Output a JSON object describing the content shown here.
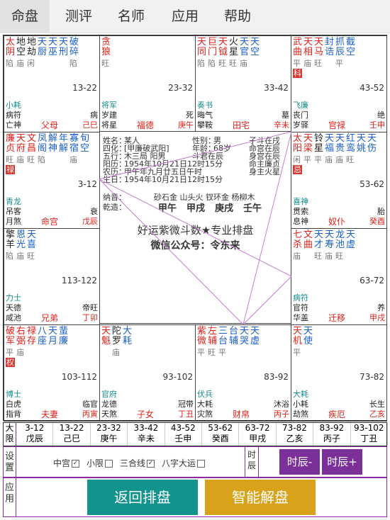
{
  "nav": {
    "tabs": [
      "命盘",
      "测评",
      "名师",
      "应用",
      "帮助"
    ]
  },
  "cells": [
    {
      "id": "si",
      "stars": [
        [
          "太阴",
          "red"
        ],
        [
          "地空",
          "blk"
        ],
        [
          "地劫",
          "blk"
        ],
        [
          "天厨",
          "blue"
        ],
        [
          "天巫",
          "blue"
        ],
        [
          "天刑",
          "blue"
        ],
        [
          "破碎",
          "blue"
        ]
      ],
      "brights": [
        "陷",
        "庙",
        "闲",
        "",
        "",
        "",
        "陷"
      ],
      "hua": "",
      "range": "13-22",
      "bl": [
        "小耗",
        "病符",
        "亡神"
      ],
      "bm": "父母",
      "br": [
        "",
        "病",
        "己巳"
      ]
    },
    {
      "id": "wu",
      "stars": [
        [
          "贪狼",
          "red"
        ]
      ],
      "brights": [
        "旺"
      ],
      "hua": "",
      "range": "23-32",
      "bl": [
        "将军",
        "岁建",
        "将星"
      ],
      "bm": "福德",
      "br": [
        "",
        "死",
        "庚午"
      ]
    },
    {
      "id": "wei",
      "stars": [
        [
          "天同",
          "red"
        ],
        [
          "巨门",
          "red"
        ],
        [
          "天钺",
          "red"
        ],
        [
          "火星",
          "blk"
        ],
        [
          "天官",
          "blue"
        ],
        [
          "天空",
          "blue"
        ]
      ],
      "brights": [
        "陷",
        "陷",
        "旺",
        "旺",
        "庙",
        ""
      ],
      "hua": "",
      "range": "33-42",
      "bl": [
        "奏书",
        "晦气",
        "攀鞍"
      ],
      "bm": "田宅",
      "br": [
        "",
        "墓",
        "辛未"
      ]
    },
    {
      "id": "shen",
      "stars": [
        [
          "武曲",
          "red"
        ],
        [
          "天相",
          "red"
        ],
        [
          "天马",
          "red"
        ],
        [
          "封诰",
          "blue"
        ],
        [
          "抓辰",
          "blue"
        ],
        [
          "截空",
          "blue"
        ]
      ],
      "brights": [
        "平",
        "庙",
        "旺",
        "",
        "平",
        ""
      ],
      "hua": "科",
      "range": "43-52",
      "bl": [
        "飞廉",
        "丧门",
        "岁驿"
      ],
      "bm": "官禄",
      "br": [
        "",
        "绝",
        "壬申"
      ]
    },
    {
      "id": "chen",
      "stars": [
        [
          "廉贞",
          "red"
        ],
        [
          "天府",
          "red"
        ],
        [
          "文昌",
          "red"
        ],
        [
          "凤阁",
          "blue"
        ],
        [
          "解神",
          "blue"
        ],
        [
          "年解",
          "blue"
        ],
        [
          "寡宿",
          "blue"
        ],
        [
          "旬空",
          "blue"
        ]
      ],
      "brights": [
        "旺",
        "庙",
        "旺",
        "陷",
        "",
        "",
        "庙",
        ""
      ],
      "hua": "禄",
      "range": "3-12",
      "bl": [
        "青龙",
        "吊客",
        "月煞"
      ],
      "bm": "命宫",
      "br": [
        "",
        "衰",
        "戊辰"
      ]
    },
    {
      "id": "you",
      "stars": [
        [
          "太阳",
          "red"
        ],
        [
          "天梁",
          "red"
        ],
        [
          "铃星",
          "blk"
        ],
        [
          "天福",
          "blue"
        ],
        [
          "天贵",
          "blue"
        ],
        [
          "红鸾",
          "blue"
        ],
        [
          "天姚",
          "blue"
        ],
        [
          "天伤",
          "blue"
        ]
      ],
      "brights": [
        "闲",
        "平",
        "平",
        "庙",
        "庙",
        "旺",
        "",
        ""
      ],
      "hua": "忌",
      "range": "53-62",
      "bl": [
        "喜神",
        "贯索",
        "息神"
      ],
      "bm": "奴仆",
      "br": [
        "",
        "胎",
        "癸酉"
      ]
    },
    {
      "id": "mao",
      "stars": [
        [
          "擎羊",
          "blk"
        ],
        [
          "恩光",
          "blue"
        ],
        [
          "天喜",
          "blue"
        ]
      ],
      "brights": [
        "陷",
        "庙",
        "旺"
      ],
      "hua": "",
      "range": "113-122",
      "bl": [
        "力士",
        "天德",
        "咸池"
      ],
      "bm": "兄弟",
      "br": [
        "",
        "帝旺",
        "丁卯"
      ]
    },
    {
      "id": "xu",
      "stars": [
        [
          "七杀",
          "red"
        ],
        [
          "文曲",
          "red"
        ],
        [
          "天才",
          "blue"
        ],
        [
          "天寿",
          "blue"
        ],
        [
          "龙池",
          "blue"
        ],
        [
          "天虚",
          "blue"
        ]
      ],
      "brights": [
        "庙",
        "",
        "旺",
        "庙",
        "旺",
        ""
      ],
      "hua": "",
      "range": "63-72",
      "bl": [
        "病符",
        "官符",
        "华盖"
      ],
      "bm": "迁移",
      "br": [
        "",
        "养",
        "甲戌"
      ]
    },
    {
      "id": "yin",
      "stars": [
        [
          "破军",
          "red"
        ],
        [
          "右弼",
          "red"
        ],
        [
          "禄存",
          "red"
        ],
        [
          "八座",
          "blue"
        ],
        [
          "天月",
          "blue"
        ],
        [
          "蜚廉",
          "blue"
        ]
      ],
      "brights": [
        "平",
        "庙",
        "",
        "",
        "",
        ""
      ],
      "hua": "权",
      "range": "103-112",
      "bl": [
        "博士",
        "白虎",
        "指背"
      ],
      "bm": "夫妻",
      "br": [
        "",
        "临官",
        "丙寅"
      ]
    },
    {
      "id": "chou",
      "stars": [
        [
          "天魁",
          "red"
        ],
        [
          "陀罗",
          "blk"
        ],
        [
          "大耗",
          "blue"
        ]
      ],
      "brights": [
        "",
        "庙",
        ""
      ],
      "hua": "",
      "range": "93-102",
      "bl": [
        "官府",
        "龙德",
        "天煞"
      ],
      "bm": "子女",
      "br": [
        "",
        "冠带",
        "丁丑"
      ]
    },
    {
      "id": "zi",
      "stars": [
        [
          "紫微",
          "red"
        ],
        [
          "左辅",
          "red"
        ],
        [
          "三台",
          "blue"
        ],
        [
          "台辅",
          "blue"
        ],
        [
          "天哭",
          "blue"
        ],
        [
          "天虚",
          "blue"
        ]
      ],
      "brights": [
        "平",
        "旺",
        "平",
        "",
        "",
        ""
      ],
      "hua": "",
      "range": "83-92",
      "bl": [
        "伏兵",
        "大耗",
        "灾煞"
      ],
      "bm": "财帛",
      "br": [
        "",
        "沐浴",
        "丙子"
      ]
    },
    {
      "id": "hai",
      "stars": [
        [
          "天机",
          "red"
        ],
        [
          "天使",
          "blue"
        ]
      ],
      "brights": [
        "平",
        ""
      ],
      "hua": "",
      "range": "73-82",
      "bl": [
        "大耗",
        "小耗",
        "劫煞"
      ],
      "bm": "疾厄",
      "br": [
        "",
        "长生",
        "乙亥"
      ]
    }
  ],
  "center": {
    "rows": [
      [
        "姓名：",
        "某人",
        "性别：",
        "男",
        "子斗在戌"
      ],
      [
        "四化：",
        "[甲廉破武阳]",
        "年龄：",
        "68岁",
        "命宫在辰"
      ],
      [
        "五行：",
        "木三局 阳男",
        "斗君在辰",
        "",
        "身宫在辰"
      ],
      [
        "阳历：",
        "1954年10月21日12时15分",
        "",
        "",
        "命主廉贞"
      ],
      [
        "农历：",
        "甲午年九月廿五日午时",
        "",
        "",
        "身主火星"
      ],
      [
        "生日：",
        "1954年10月21日12时15分",
        "",
        "",
        ""
      ]
    ],
    "nayin_label": "纳音：",
    "nayin": "砂石金 山头火 钗环金 杨柳木",
    "qianzao_label": "乾造：",
    "pillars": [
      "甲午",
      "甲戌",
      "庚戌",
      "壬午"
    ],
    "brand": "好运紫微斗数★专业排盘",
    "wechat": "微信公众号：令东来"
  },
  "strip": {
    "label": "大限",
    "items": [
      [
        "3-12",
        "戊辰"
      ],
      [
        "13-22",
        "己巳"
      ],
      [
        "23-32",
        "庚午"
      ],
      [
        "33-42",
        "辛未"
      ],
      [
        "43-52",
        "壬申"
      ],
      [
        "53-62",
        "癸酉"
      ],
      [
        "63-72",
        "甲戌"
      ],
      [
        "73-82",
        "乙亥"
      ],
      [
        "83-92",
        "丙子"
      ],
      [
        "93-102",
        "丁丑"
      ]
    ]
  },
  "settings": {
    "label": "设置",
    "options": [
      [
        "中宫",
        true
      ],
      [
        "小限",
        false
      ],
      [
        "三合线",
        true
      ],
      [
        "八字大运",
        false
      ]
    ],
    "hour_label": "时辰",
    "prev": "时辰-",
    "next": "时辰+"
  },
  "apps": {
    "label": "应用",
    "back": "返回排盘",
    "ai": "智能解盘"
  },
  "colors": {
    "purple": "#7a2f99",
    "teal": "#13938d",
    "gold": "#d9a21b"
  }
}
